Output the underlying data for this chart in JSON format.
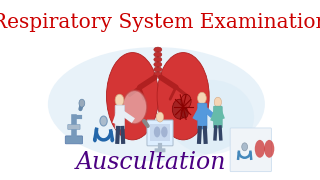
{
  "title": "Respiratory System Examination",
  "title_color": "#cc0000",
  "title_fontsize": 14.5,
  "subtitle": "Auscultation",
  "subtitle_color": "#4b0082",
  "subtitle_fontsize": 17,
  "background_color": "#ffffff",
  "bg_blob_color": "#d6e8f5",
  "lung_color": "#cc2222",
  "lung_inner_color": "#e05555",
  "trachea_color": "#c44444",
  "fig_width": 3.2,
  "fig_height": 1.8,
  "dpi": 100
}
